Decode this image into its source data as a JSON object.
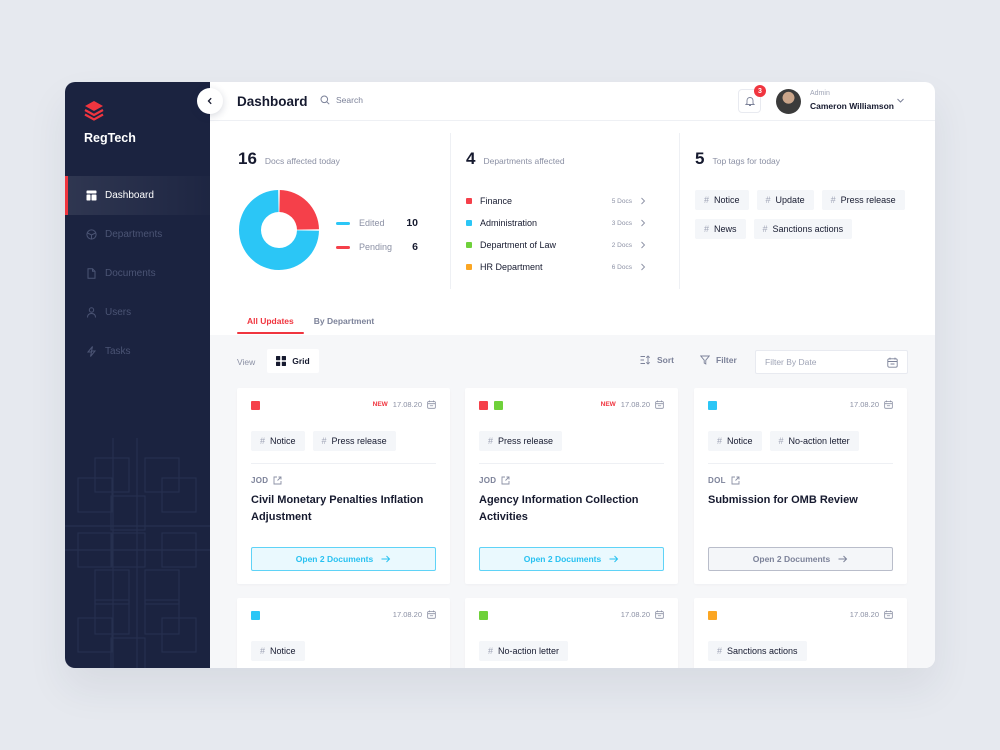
{
  "sidebar": {
    "brand": "RegTech",
    "items": [
      {
        "label": "Dashboard",
        "icon": "layout-icon",
        "active": true
      },
      {
        "label": "Departments",
        "icon": "cube-icon",
        "active": false
      },
      {
        "label": "Documents",
        "icon": "document-icon",
        "active": false
      },
      {
        "label": "Users",
        "icon": "user-icon",
        "active": false
      },
      {
        "label": "Tasks",
        "icon": "lightning-icon",
        "active": false
      }
    ]
  },
  "header": {
    "title": "Dashboard",
    "search_placeholder": "Search",
    "notifications_count": "3",
    "user": {
      "role": "Admin",
      "name": "Cameron Williamson"
    }
  },
  "stats": {
    "docs": {
      "count": "16",
      "label": "Docs affected today"
    },
    "departments": {
      "count": "4",
      "label": "Departments affected"
    },
    "tags": {
      "count": "5",
      "label": "Top tags for today"
    }
  },
  "chart_data": {
    "type": "pie",
    "title": "Docs affected today",
    "categories": [
      "Edited",
      "Pending"
    ],
    "values": [
      10,
      6
    ],
    "colors": [
      "#2bc6f6",
      "#f5404a"
    ],
    "legend_position": "right",
    "donut": true
  },
  "legend": [
    {
      "label": "Edited",
      "value": "10",
      "color": "#2bc6f6"
    },
    {
      "label": "Pending",
      "value": "6",
      "color": "#f5404a"
    }
  ],
  "departments": [
    {
      "name": "Finance",
      "count": "5 Docs",
      "color": "#f5404a"
    },
    {
      "name": "Administration",
      "count": "3 Docs",
      "color": "#2bc6f6"
    },
    {
      "name": "Department of Law",
      "count": "2 Docs",
      "color": "#6fd13a"
    },
    {
      "name": "HR Department",
      "count": "6 Docs",
      "color": "#fba623"
    }
  ],
  "top_tags": [
    "Notice",
    "Update",
    "Press release",
    "News",
    "Sanctions actions"
  ],
  "tabs": [
    {
      "label": "All Updates",
      "active": true
    },
    {
      "label": "By Department",
      "active": false
    }
  ],
  "toolbar": {
    "view_label": "View",
    "grid_label": "Grid",
    "sort_label": "Sort",
    "filter_label": "Filter",
    "date_placeholder": "Filter By Date"
  },
  "cards": [
    {
      "colors": [
        "#f5404a"
      ],
      "new_label": "NEW",
      "date": "17.08.20",
      "tags": [
        "Notice",
        "Press release"
      ],
      "source": "JOD",
      "title": "Civil Monetary Penalties Inflation Adjustment",
      "button": "Open 2 Documents",
      "button_style": "primary"
    },
    {
      "colors": [
        "#f5404a",
        "#6fd13a"
      ],
      "new_label": "NEW",
      "date": "17.08.20",
      "tags": [
        "Press release"
      ],
      "source": "JOD",
      "title": "Agency Information Collection Activities",
      "button": "Open 2 Documents",
      "button_style": "primary"
    },
    {
      "colors": [
        "#2bc6f6"
      ],
      "new_label": "",
      "date": "17.08.20",
      "tags": [
        "Notice",
        "No-action letter"
      ],
      "source": "DOL",
      "title": "Submission for OMB Review",
      "button": "Open 2 Documents",
      "button_style": "secondary"
    },
    {
      "colors": [
        "#2bc6f6"
      ],
      "new_label": "",
      "date": "17.08.20",
      "tags": [
        "Notice"
      ]
    },
    {
      "colors": [
        "#6fd13a"
      ],
      "new_label": "",
      "date": "17.08.20",
      "tags": [
        "No-action letter"
      ]
    },
    {
      "colors": [
        "#fba623"
      ],
      "new_label": "",
      "date": "17.08.20",
      "tags": [
        "Sanctions actions"
      ]
    }
  ]
}
